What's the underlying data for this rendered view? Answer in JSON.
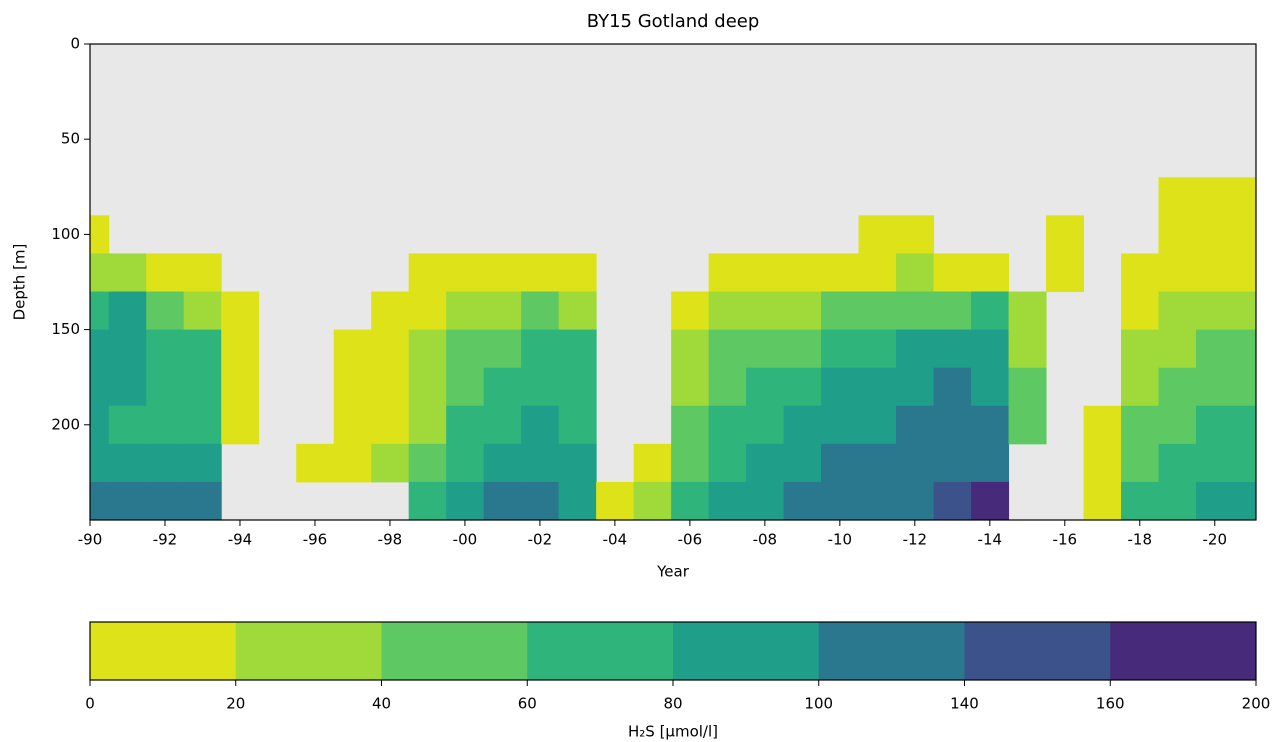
{
  "chart_data": {
    "type": "contour",
    "title": "BY15 Gotland deep",
    "xlabel": "Year",
    "ylabel": "Depth [m]",
    "colorbar_label": "H₂S [µmol/l]",
    "x": [
      1990,
      1991,
      1992,
      1993,
      1994,
      1995,
      1996,
      1997,
      1998,
      1999,
      2000,
      2001,
      2002,
      2003,
      2004,
      2005,
      2006,
      2007,
      2008,
      2009,
      2010,
      2011,
      2012,
      2013,
      2014,
      2015,
      2016,
      2017,
      2018,
      2019,
      2020,
      2021
    ],
    "y": [
      80,
      100,
      120,
      140,
      160,
      180,
      200,
      220,
      240
    ],
    "z": [
      [
        null,
        5,
        20,
        60,
        80,
        80,
        80,
        90,
        110
      ],
      [
        null,
        null,
        30,
        80,
        90,
        80,
        70,
        90,
        110
      ],
      [
        null,
        null,
        10,
        50,
        70,
        60,
        60,
        80,
        100
      ],
      [
        null,
        null,
        10,
        30,
        60,
        60,
        70,
        90,
        100
      ],
      [
        null,
        null,
        null,
        5,
        10,
        5,
        10,
        null,
        null
      ],
      [
        null,
        null,
        null,
        null,
        null,
        null,
        null,
        null,
        null
      ],
      [
        null,
        null,
        null,
        null,
        null,
        null,
        null,
        5,
        null
      ],
      [
        null,
        null,
        null,
        null,
        5,
        5,
        10,
        10,
        null
      ],
      [
        null,
        null,
        null,
        5,
        5,
        10,
        10,
        20,
        null
      ],
      [
        null,
        null,
        5,
        10,
        20,
        30,
        30,
        40,
        60
      ],
      [
        null,
        null,
        10,
        20,
        40,
        50,
        60,
        70,
        90
      ],
      [
        null,
        null,
        10,
        30,
        50,
        60,
        70,
        90,
        110
      ],
      [
        null,
        null,
        10,
        40,
        60,
        70,
        80,
        90,
        100
      ],
      [
        null,
        null,
        10,
        30,
        60,
        70,
        70,
        80,
        90
      ],
      [
        null,
        null,
        null,
        null,
        null,
        null,
        null,
        null,
        5
      ],
      [
        null,
        null,
        null,
        null,
        null,
        null,
        null,
        10,
        20
      ],
      [
        null,
        null,
        null,
        10,
        20,
        30,
        40,
        50,
        60
      ],
      [
        null,
        null,
        10,
        20,
        40,
        50,
        60,
        70,
        80
      ],
      [
        null,
        null,
        10,
        30,
        40,
        60,
        70,
        80,
        90
      ],
      [
        null,
        null,
        10,
        30,
        50,
        60,
        80,
        90,
        100
      ],
      [
        null,
        null,
        10,
        40,
        60,
        80,
        90,
        100,
        110
      ],
      [
        null,
        5,
        10,
        40,
        70,
        80,
        90,
        110,
        120
      ],
      [
        null,
        5,
        20,
        50,
        80,
        90,
        100,
        110,
        130
      ],
      [
        null,
        null,
        10,
        50,
        80,
        100,
        100,
        120,
        150
      ],
      [
        null,
        null,
        10,
        60,
        80,
        90,
        100,
        110,
        170
      ],
      [
        null,
        null,
        null,
        20,
        30,
        40,
        50,
        null,
        null
      ],
      [
        null,
        5,
        5,
        null,
        null,
        null,
        null,
        null,
        null
      ],
      [
        null,
        null,
        null,
        null,
        null,
        null,
        5,
        5,
        5
      ],
      [
        null,
        null,
        5,
        10,
        20,
        30,
        40,
        50,
        60
      ],
      [
        5,
        5,
        10,
        20,
        30,
        40,
        50,
        60,
        70
      ],
      [
        5,
        5,
        10,
        30,
        40,
        50,
        60,
        70,
        80
      ],
      [
        5,
        5,
        10,
        30,
        40,
        50,
        60,
        70,
        80
      ]
    ],
    "xlim": [
      1990,
      2021.1
    ],
    "ylim": [
      250,
      0
    ],
    "xticks": [
      {
        "value": 1990,
        "label": "-90"
      },
      {
        "value": 1992,
        "label": "-92"
      },
      {
        "value": 1994,
        "label": "-94"
      },
      {
        "value": 1996,
        "label": "-96"
      },
      {
        "value": 1998,
        "label": "-98"
      },
      {
        "value": 2000,
        "label": "-00"
      },
      {
        "value": 2002,
        "label": "-02"
      },
      {
        "value": 2004,
        "label": "-04"
      },
      {
        "value": 2006,
        "label": "-06"
      },
      {
        "value": 2008,
        "label": "-08"
      },
      {
        "value": 2010,
        "label": "-10"
      },
      {
        "value": 2012,
        "label": "-12"
      },
      {
        "value": 2014,
        "label": "-14"
      },
      {
        "value": 2016,
        "label": "-16"
      },
      {
        "value": 2018,
        "label": "-18"
      },
      {
        "value": 2020,
        "label": "-20"
      }
    ],
    "yticks": [
      0,
      50,
      100,
      150,
      200
    ],
    "levels": [
      0,
      20,
      40,
      60,
      80,
      100,
      140,
      160,
      200
    ],
    "colors": [
      "#dde318",
      "#9fda3a",
      "#5ec962",
      "#2fb47c",
      "#1f9e89",
      "#2a788e",
      "#3b528b",
      "#472a7a"
    ]
  }
}
